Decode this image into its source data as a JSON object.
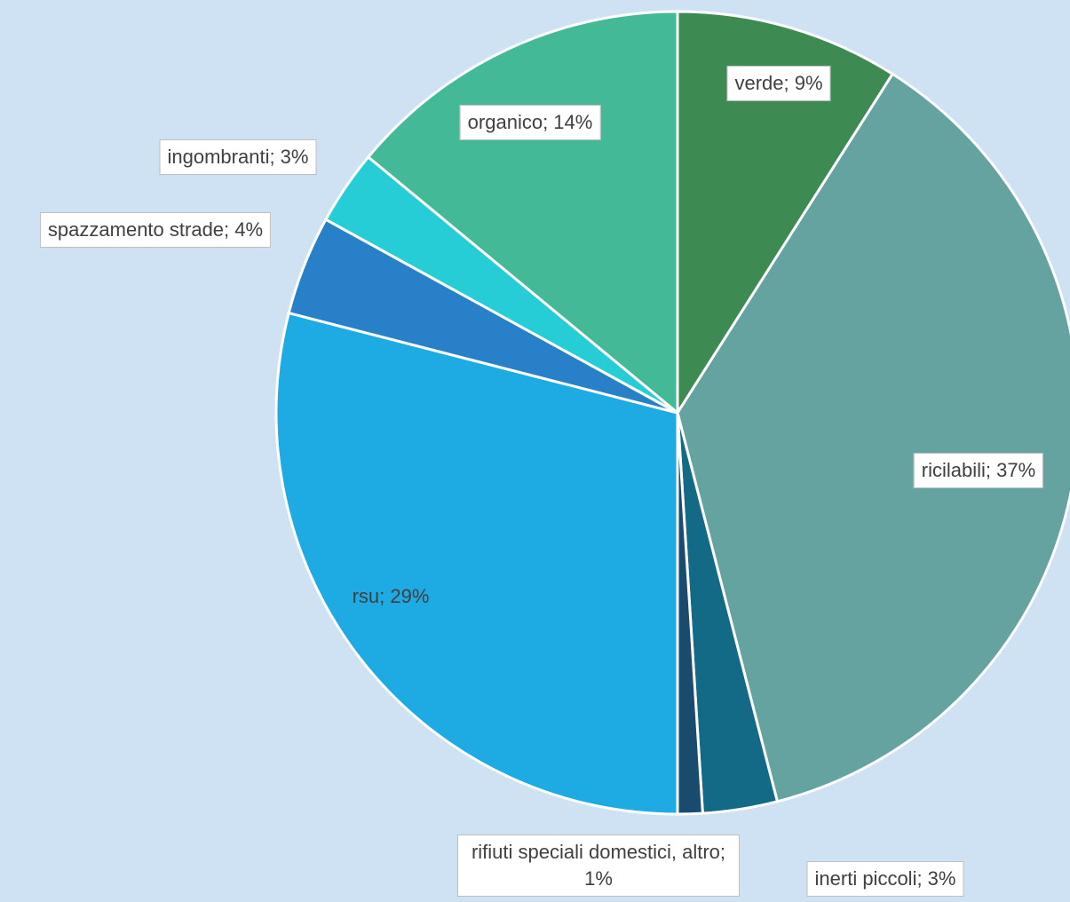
{
  "chart_data": {
    "type": "pie",
    "values": [
      9,
      37,
      3,
      1,
      29,
      4,
      3,
      14
    ],
    "value_labels": [
      "verde; 9%",
      "ricilabili; 37%",
      "inerti piccoli; 3%",
      "rifiuti speciali domestici, altro; 1%",
      "rsu; 29%",
      "spazzamento strade; 4%",
      "ingombranti; 3%",
      "organico; 14%"
    ],
    "colors": [
      "#3d8b52",
      "#64a39f",
      "#136a87",
      "#1a4a6e",
      "#1eaae3",
      "#2780c8",
      "#26cdd6",
      "#43b997"
    ]
  }
}
